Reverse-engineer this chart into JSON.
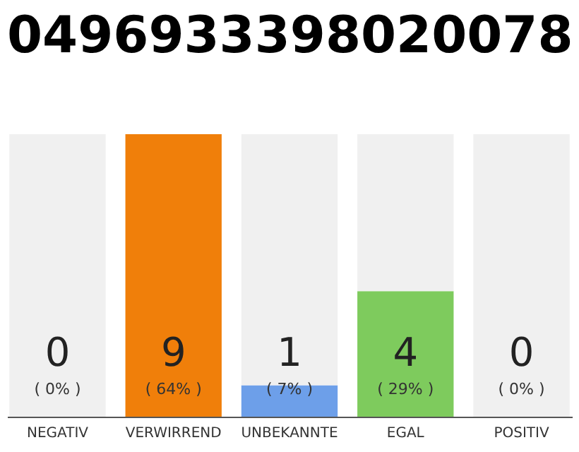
{
  "chart_data": {
    "type": "bar",
    "title": "0496933398020078",
    "categories": [
      "NEGATIV",
      "VERWIRREND",
      "UNBEKANNTE",
      "EGAL",
      "POSITIV"
    ],
    "stacked": true,
    "series": [
      {
        "colors": [
          "#f0f0f0",
          "#f07f0a",
          "#6d9fe9",
          "#7ecb5d",
          "#f0f0f0"
        ],
        "values": [
          0,
          9,
          1,
          4,
          0
        ],
        "value_labels": [
          null,
          "9",
          "1",
          "4",
          null
        ]
      },
      {
        "color": "#f0f0f0",
        "values": [
          9,
          0,
          8,
          5,
          9
        ]
      }
    ],
    "ylim": [
      0,
      9
    ],
    "tick_labels": "x",
    "annotations": [
      "( 0% )",
      "( 64% )",
      "( 7% )",
      "( 29% )",
      "( 0% )",
      {
        "text": "0",
        "x": "NEGATIV",
        "y": 0
      },
      {
        "text": "0",
        "x": "POSITIV",
        "y": 0
      }
    ]
  }
}
